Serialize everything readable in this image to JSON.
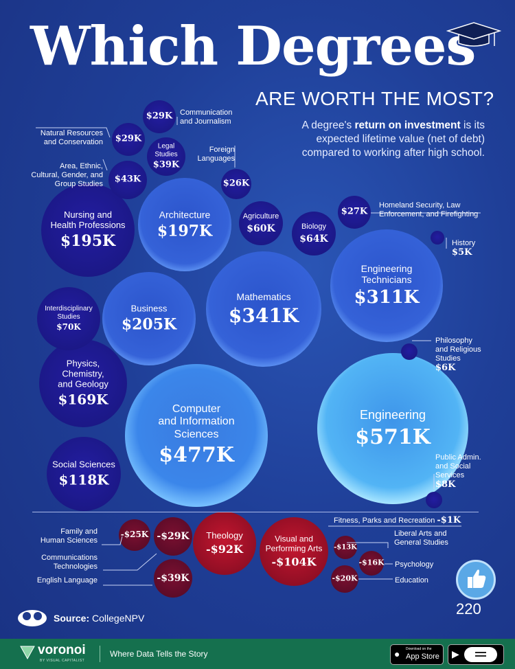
{
  "header": {
    "title": "Which Degrees",
    "subtitle": "ARE WORTH THE MOST?",
    "description_pre": "A degree's ",
    "description_bold": "return on investment",
    "description_post": " is its expected lifetime value (net of debt) compared to working after high school."
  },
  "chart_data": {
    "type": "bubble",
    "title": "Which Degrees Are Worth the Most?",
    "unit": "USD (thousands), lifetime ROI net of debt",
    "positive": [
      {
        "name": "Engineering",
        "value": 571,
        "label": "$571K"
      },
      {
        "name": "Computer and Information Sciences",
        "value": 477,
        "label": "$477K"
      },
      {
        "name": "Mathematics",
        "value": 341,
        "label": "$341K"
      },
      {
        "name": "Engineering Technicians",
        "value": 311,
        "label": "$311K"
      },
      {
        "name": "Business",
        "value": 205,
        "label": "$205K"
      },
      {
        "name": "Architecture",
        "value": 197,
        "label": "$197K"
      },
      {
        "name": "Nursing and Health Professions",
        "value": 195,
        "label": "$195K"
      },
      {
        "name": "Physics, Chemistry, and Geology",
        "value": 169,
        "label": "$169K"
      },
      {
        "name": "Social Sciences",
        "value": 118,
        "label": "$118K"
      },
      {
        "name": "Interdisciplinary Studies",
        "value": 70,
        "label": "$70K"
      },
      {
        "name": "Biology",
        "value": 64,
        "label": "$64K"
      },
      {
        "name": "Agriculture",
        "value": 60,
        "label": "$60K"
      },
      {
        "name": "Area, Ethnic, Cultural, Gender, and Group Studies",
        "value": 43,
        "label": "$43K"
      },
      {
        "name": "Legal Studies",
        "value": 39,
        "label": "$39K"
      },
      {
        "name": "Communication and Journalism",
        "value": 29,
        "label": "$29K"
      },
      {
        "name": "Natural Resources and Conservation",
        "value": 29,
        "label": "$29K"
      },
      {
        "name": "Homeland Security, Law Enforcement, and Firefighting",
        "value": 27,
        "label": "$27K"
      },
      {
        "name": "Foreign Languages",
        "value": 26,
        "label": "$26K"
      },
      {
        "name": "Public Admin. and Social Services",
        "value": 8,
        "label": "$8K"
      },
      {
        "name": "Philosophy and Religious Studies",
        "value": 6,
        "label": "$6K"
      },
      {
        "name": "History",
        "value": 5,
        "label": "$5K"
      }
    ],
    "negative": [
      {
        "name": "Visual and Performing Arts",
        "value": -104,
        "label": "-$104K"
      },
      {
        "name": "Theology",
        "value": -92,
        "label": "-$92K"
      },
      {
        "name": "English Language",
        "value": -39,
        "label": "-$39K"
      },
      {
        "name": "Communications Technologies",
        "value": -29,
        "label": "-$29K"
      },
      {
        "name": "Family and Human Sciences",
        "value": -25,
        "label": "-$25K"
      },
      {
        "name": "Education",
        "value": -20,
        "label": "-$20K"
      },
      {
        "name": "Psychology",
        "value": -16,
        "label": "-$16K"
      },
      {
        "name": "Liberal Arts and General Studies",
        "value": -13,
        "label": "-$13K"
      },
      {
        "name": "Fitness, Parks and Recreation",
        "value": -1,
        "label": "-$1K"
      }
    ]
  },
  "labels": {
    "engineering": "Engineering",
    "cis": "Computer and Information Sciences",
    "math": "Mathematics",
    "engtech": "Engineering Technicians",
    "business": "Business",
    "architecture": "Architecture",
    "nursing": "Nursing and Health Professions",
    "physics": "Physics, Chemistry, and Geology",
    "social": "Social Sciences",
    "interdisciplinary": "Interdisciplinary Studies",
    "biology": "Biology",
    "agriculture": "Agriculture",
    "area": "Area, Ethnic, Cultural, Gender, and Group Studies",
    "legal": "Legal Studies",
    "communication": "Communication and Journalism",
    "natural": "Natural Resources and Conservation",
    "homeland": "Homeland Security, Law Enforcement, and Firefighting",
    "foreign": "Foreign Languages",
    "public": "Public Admin. and Social Services",
    "philosophy": "Philosophy and Religious Studies",
    "history": "History",
    "visual": "Visual and Performing Arts",
    "theology": "Theology",
    "english": "English Language",
    "commtech": "Communications Technologies",
    "family": "Family and Human Sciences",
    "education": "Education",
    "psychology": "Psychology",
    "liberal": "Liberal Arts and General Studies",
    "fitness": "Fitness, Parks and Recreation"
  },
  "values": {
    "engineering": "$571K",
    "cis": "$477K",
    "math": "$341K",
    "engtech": "$311K",
    "business": "$205K",
    "architecture": "$197K",
    "nursing": "$195K",
    "physics": "$169K",
    "social": "$118K",
    "interdisciplinary": "$70K",
    "biology": "$64K",
    "agriculture": "$60K",
    "area": "$43K",
    "legal": "$39K",
    "communication": "$29K",
    "natural": "$29K",
    "homeland": "$27K",
    "foreign": "$26K",
    "public": "$8K",
    "philosophy": "$6K",
    "history": "$5K",
    "visual": "-$104K",
    "theology": "-$92K",
    "english": "-$39K",
    "commtech": "-$29K",
    "family": "-$25K",
    "education": "-$20K",
    "psychology": "-$16K",
    "liberal": "-$13K",
    "fitness": "-$1K"
  },
  "footer": {
    "source_label": "Source:",
    "source_value": "CollegeNPV",
    "brand": "voronoi",
    "brand_sub": "BY VISUAL CAPITALIST",
    "tagline": "Where Data Tells the Story",
    "app_store_small": "Download on the",
    "app_store": "App Store",
    "google_play": "lay",
    "like_count": "220"
  },
  "colors": {
    "background": "#1f3a8c",
    "positive_bubble": "#3d7fe0",
    "dark_bubble": "#1c1a88",
    "negative_bubble": "#b0122c",
    "footer": "#15704e"
  }
}
